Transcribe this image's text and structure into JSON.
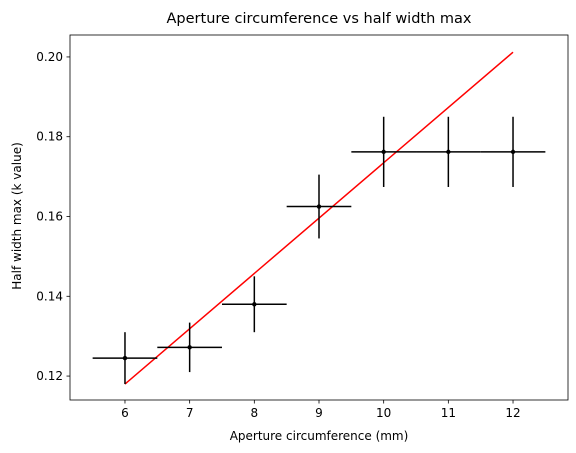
{
  "chart_data": {
    "type": "scatter",
    "title": "Aperture circumference vs half width max",
    "xlabel": "Aperture circumference (mm)",
    "ylabel": "Half width max (k value)",
    "xlim": [
      5.15,
      12.85
    ],
    "ylim": [
      0.114,
      0.2055
    ],
    "xticks": [
      6,
      7,
      8,
      9,
      10,
      11,
      12
    ],
    "xtick_labels": [
      "6",
      "7",
      "8",
      "9",
      "10",
      "11",
      "12"
    ],
    "yticks": [
      0.12,
      0.14,
      0.16,
      0.18,
      0.2
    ],
    "ytick_labels": [
      "0.12",
      "0.14",
      "0.16",
      "0.18",
      "0.20"
    ],
    "grid": false,
    "points": [
      {
        "x": 6,
        "y": 0.1245,
        "xerr": 0.5,
        "yerr": 0.0065
      },
      {
        "x": 7,
        "y": 0.1272,
        "xerr": 0.5,
        "yerr": 0.0062
      },
      {
        "x": 8,
        "y": 0.138,
        "xerr": 0.5,
        "yerr": 0.007
      },
      {
        "x": 9,
        "y": 0.1625,
        "xerr": 0.5,
        "yerr": 0.008
      },
      {
        "x": 10,
        "y": 0.1762,
        "xerr": 0.5,
        "yerr": 0.0088
      },
      {
        "x": 11,
        "y": 0.1762,
        "xerr": 0.5,
        "yerr": 0.0088
      },
      {
        "x": 12,
        "y": 0.1762,
        "xerr": 0.5,
        "yerr": 0.0088
      }
    ],
    "point_color": "#000000",
    "fit_line": {
      "x": [
        6,
        12
      ],
      "y": [
        0.118,
        0.2012
      ],
      "color": "#ff0000"
    }
  }
}
